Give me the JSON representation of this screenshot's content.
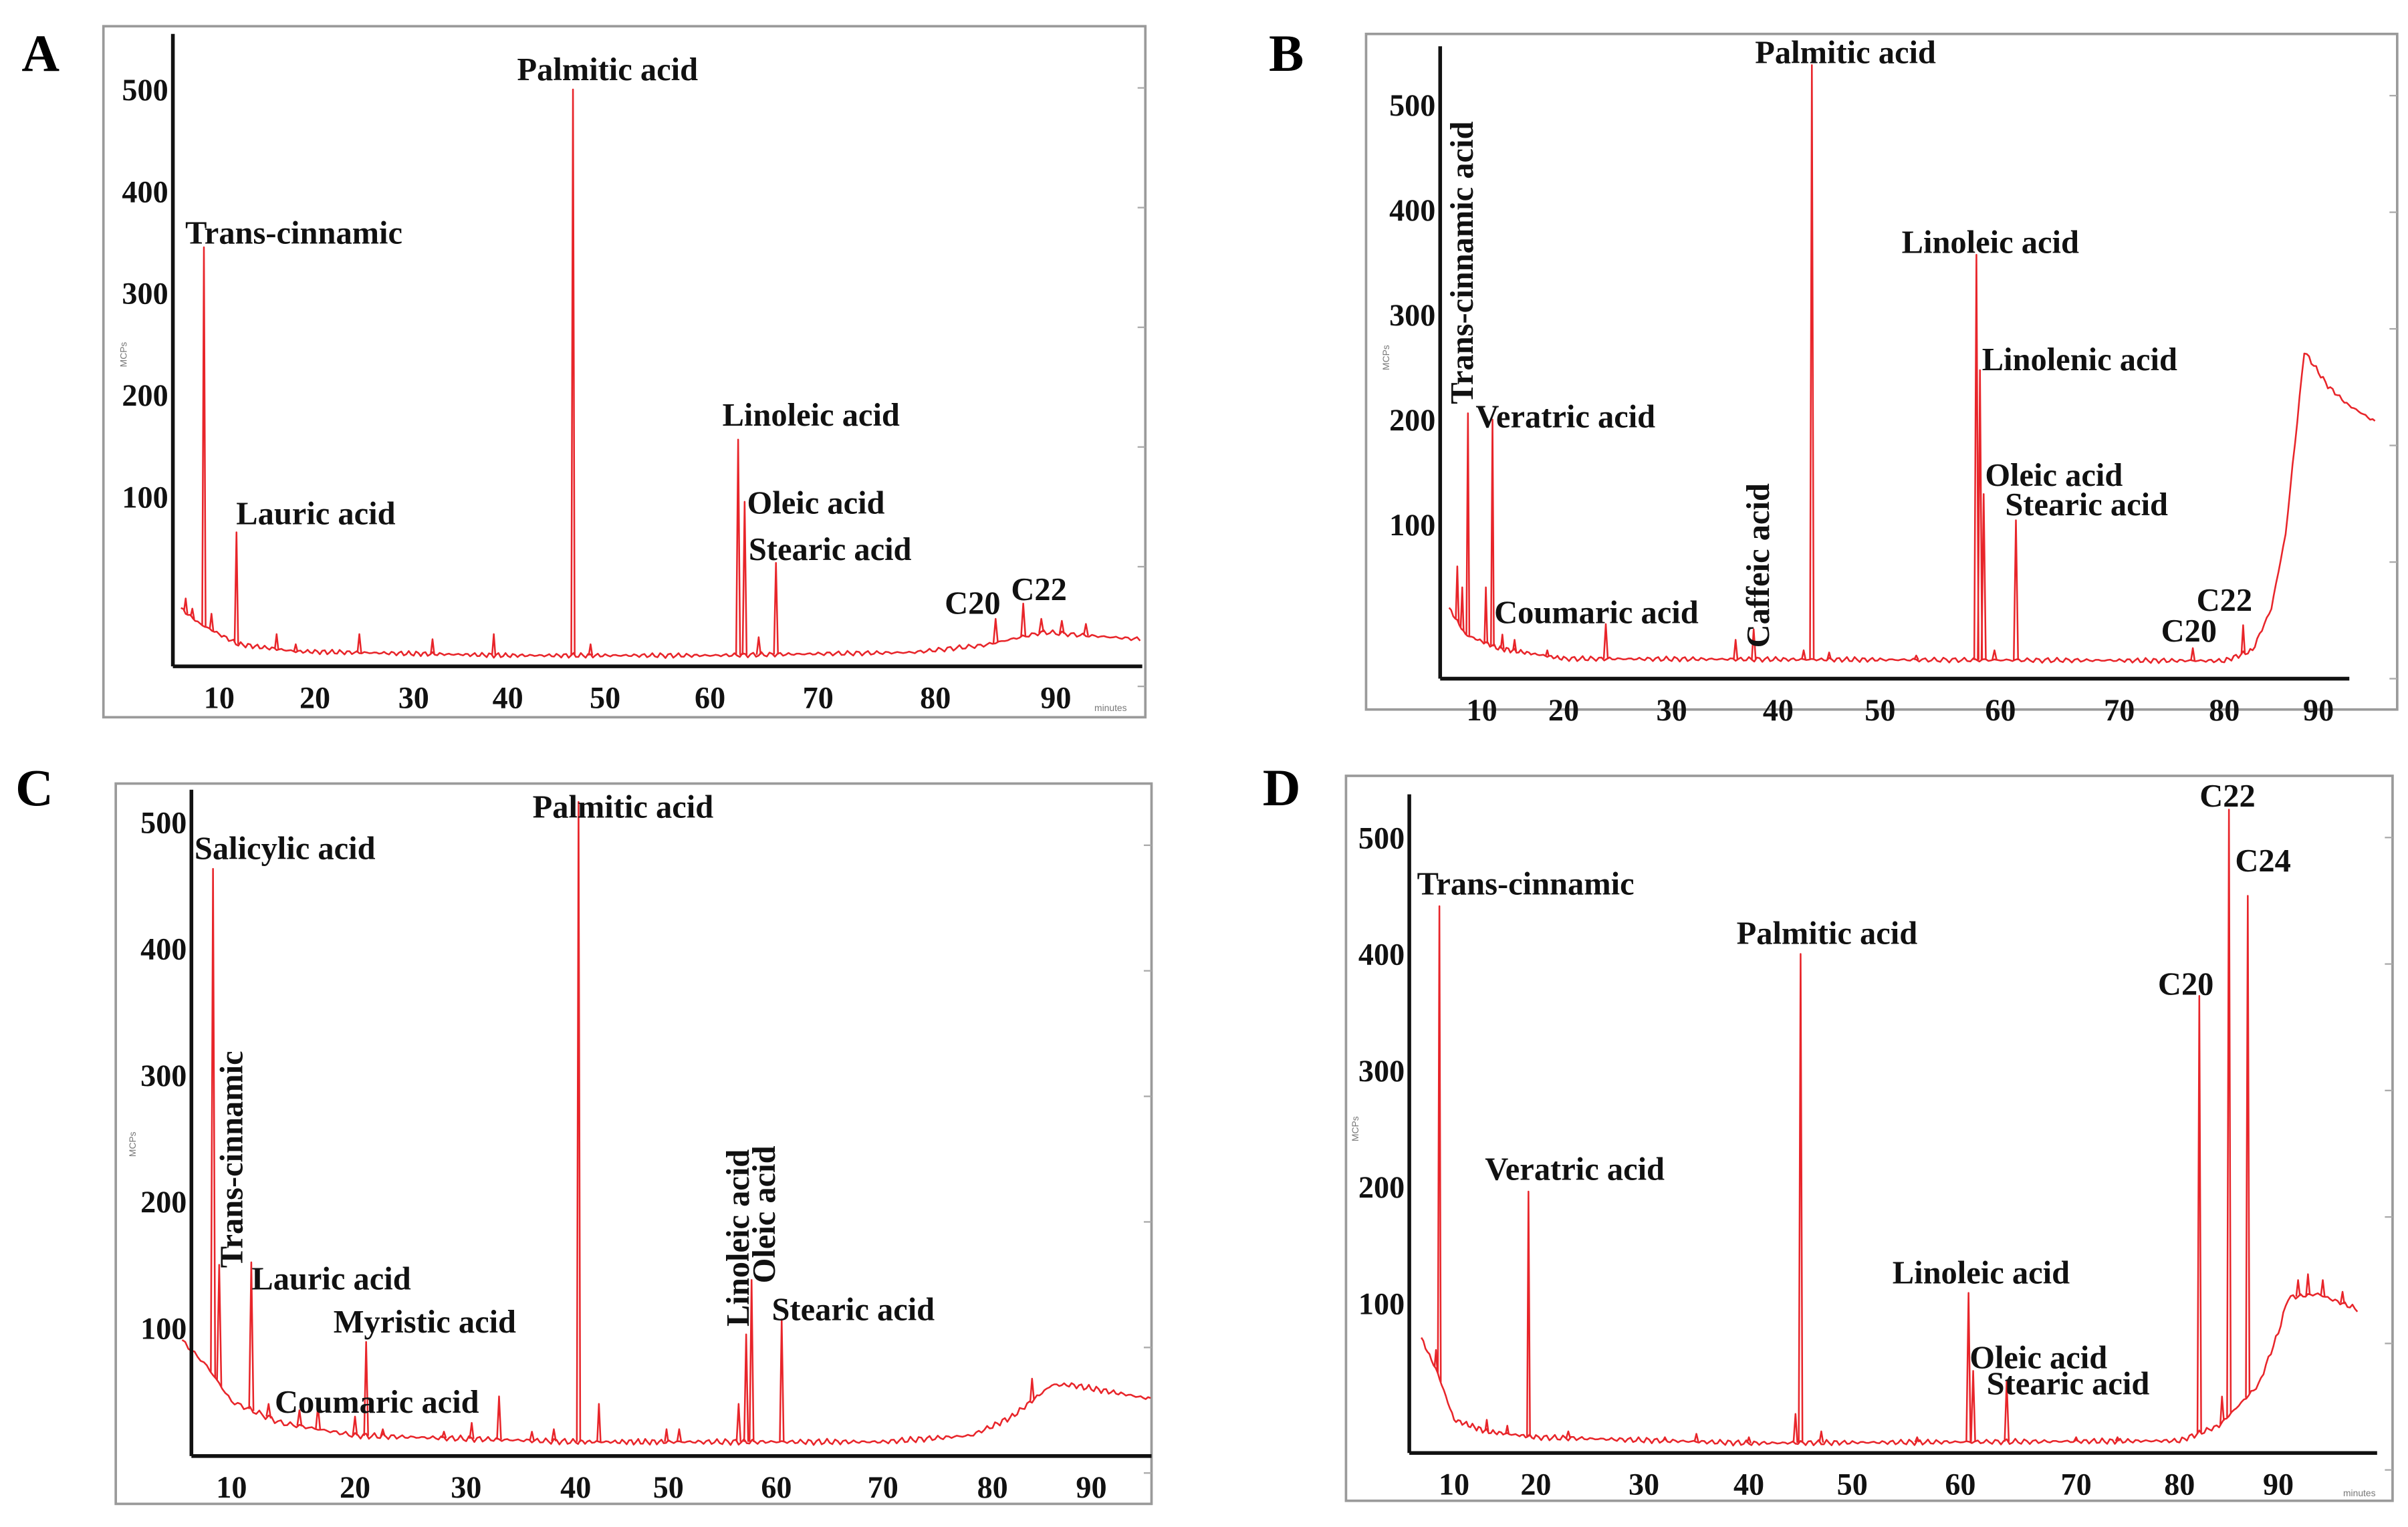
{
  "figure": {
    "colors": {
      "trace": "#e8252a",
      "axis": "#111111",
      "frame": "#9a9a9a"
    },
    "y_unit_label": "MCPs",
    "x_unit_label": "minutes"
  },
  "chart_data": [
    {
      "panel": "A",
      "type": "line",
      "x_ticks": [
        "10",
        "20",
        "30",
        "40",
        "50",
        "60",
        "70",
        "80",
        "90"
      ],
      "y_ticks": [
        "100",
        "200",
        "300",
        "400",
        "500"
      ],
      "xlim": [
        6,
        97
      ],
      "grid": false,
      "peaks": [
        {
          "label": "Trans-cinnamic",
          "rt": 8.4,
          "intensity": 345
        },
        {
          "label": "Lauric acid",
          "rt": 11.8,
          "intensity": 65
        },
        {
          "label": "Palmitic acid",
          "rt": 46.7,
          "intensity": 500
        },
        {
          "label": "Linoleic acid",
          "rt": 62.6,
          "intensity": 156
        },
        {
          "label": "Oleic acid",
          "rt": 63.2,
          "intensity": 95
        },
        {
          "label": "Stearic acid",
          "rt": 66.1,
          "intensity": 35
        },
        {
          "label": "C20",
          "rt": 85.0,
          "intensity": -20
        },
        {
          "label": "C22",
          "rt": 87.3,
          "intensity": -5
        }
      ],
      "minor_peaks": [
        [
          6.5,
          0
        ],
        [
          7.2,
          -10
        ],
        [
          9.2,
          -15
        ],
        [
          16,
          -35
        ],
        [
          18,
          -45
        ],
        [
          24.5,
          -35
        ],
        [
          32,
          -40
        ],
        [
          38.5,
          -35
        ],
        [
          48.5,
          -45
        ],
        [
          64.5,
          -38
        ],
        [
          88.8,
          -20
        ],
        [
          90.5,
          -22
        ],
        [
          92.5,
          -25
        ]
      ],
      "baseline": [
        [
          6,
          -10
        ],
        [
          8,
          -25
        ],
        [
          12,
          -45
        ],
        [
          18,
          -52
        ],
        [
          40,
          -56
        ],
        [
          60,
          -56
        ],
        [
          78,
          -53
        ],
        [
          84,
          -46
        ],
        [
          89,
          -33
        ],
        [
          92,
          -36
        ],
        [
          97,
          -40
        ]
      ]
    },
    {
      "panel": "B",
      "type": "line",
      "x_ticks": [
        "10",
        "20",
        "30",
        "40",
        "50",
        "60",
        "70",
        "80",
        "90"
      ],
      "y_ticks": [
        "100",
        "200",
        "300",
        "400",
        "500"
      ],
      "xlim": [
        6,
        96
      ],
      "grid": false,
      "peaks": [
        {
          "label": "Trans-cinnamic acid",
          "rt": 8.3,
          "intensity": 206
        },
        {
          "label": "Veratric acid",
          "rt": 11.3,
          "intensity": 200
        },
        {
          "label": "Coumaric acid",
          "rt": 23.9,
          "intensity": 5
        },
        {
          "label": "Caffeic acid",
          "rt": 37.7,
          "intensity": 0
        },
        {
          "label": "Palmitic acid",
          "rt": 43.3,
          "intensity": 538
        },
        {
          "label": "Linoleic acid",
          "rt": 58.0,
          "intensity": 357
        },
        {
          "label": "Linolenic acid",
          "rt": 58.3,
          "intensity": 247
        },
        {
          "label": "Oleic acid",
          "rt": 58.6,
          "intensity": 129
        },
        {
          "label": "Stearic acid",
          "rt": 61.3,
          "intensity": 104
        },
        {
          "label": "C20",
          "rt": 77.0,
          "intensity": -18
        },
        {
          "label": "C22",
          "rt": 82.0,
          "intensity": 4
        }
      ],
      "minor_peaks": [
        [
          7,
          60
        ],
        [
          7.6,
          40
        ],
        [
          10.5,
          40
        ],
        [
          12.5,
          -5
        ],
        [
          14,
          -10
        ],
        [
          18,
          -20
        ],
        [
          36,
          -10
        ],
        [
          42.5,
          -20
        ],
        [
          45,
          -22
        ],
        [
          53,
          -25
        ],
        [
          59.5,
          -20
        ]
      ],
      "baseline": [
        [
          6,
          20
        ],
        [
          8,
          -5
        ],
        [
          12,
          -18
        ],
        [
          20,
          -28
        ],
        [
          80,
          -30
        ],
        [
          83,
          -20
        ],
        [
          85,
          20
        ],
        [
          86.5,
          90
        ],
        [
          88.5,
          265
        ],
        [
          91,
          232
        ],
        [
          93,
          215
        ],
        [
          96,
          198
        ]
      ]
    },
    {
      "panel": "C",
      "type": "line",
      "x_ticks": [
        "10",
        "20",
        "30",
        "40",
        "50",
        "60",
        "70",
        "80",
        "90"
      ],
      "y_ticks": [
        "100",
        "200",
        "300",
        "400",
        "500"
      ],
      "xlim": [
        6,
        96
      ],
      "grid": false,
      "peaks": [
        {
          "label": "Salicylic acid",
          "rt": 8.5,
          "intensity": 463
        },
        {
          "label": "Trans-cinnamic",
          "rt": 9.0,
          "intensity": 150
        },
        {
          "label": "Lauric acid",
          "rt": 11.6,
          "intensity": 152
        },
        {
          "label": "Myristic acid",
          "rt": 21.0,
          "intensity": 89
        },
        {
          "label": "Coumaric acid",
          "rt": 33.0,
          "intensity": 46
        },
        {
          "label": "Palmitic acid",
          "rt": 40.3,
          "intensity": 516
        },
        {
          "label": "Linoleic acid",
          "rt": 57.2,
          "intensity": 95
        },
        {
          "label": "Oleic acid",
          "rt": 57.7,
          "intensity": 138
        },
        {
          "label": "Stearic acid",
          "rt": 60.5,
          "intensity": 107
        }
      ],
      "minor_peaks": [
        [
          13,
          40
        ],
        [
          15.5,
          35
        ],
        [
          17,
          38
        ],
        [
          20,
          30
        ],
        [
          22.5,
          20
        ],
        [
          28,
          18
        ],
        [
          30.5,
          25
        ],
        [
          36,
          18
        ],
        [
          38,
          20
        ],
        [
          42.5,
          40
        ],
        [
          49.8,
          20
        ],
        [
          51,
          20
        ],
        [
          56.5,
          40
        ],
        [
          84,
          60
        ]
      ],
      "baseline": [
        [
          6,
          90
        ],
        [
          8,
          70
        ],
        [
          10,
          42
        ],
        [
          14,
          25
        ],
        [
          20,
          15
        ],
        [
          40,
          10
        ],
        [
          70,
          10
        ],
        [
          78,
          15
        ],
        [
          82,
          30
        ],
        [
          86,
          55
        ],
        [
          88,
          55
        ],
        [
          96,
          44
        ]
      ]
    },
    {
      "panel": "D",
      "type": "line",
      "x_ticks": [
        "10",
        "20",
        "30",
        "40",
        "50",
        "60",
        "70",
        "80",
        "90"
      ],
      "y_ticks": [
        "100",
        "200",
        "300",
        "400",
        "500"
      ],
      "xlim": [
        6,
        98
      ],
      "grid": false,
      "peaks": [
        {
          "label": "Trans-cinnamic",
          "rt": 8.2,
          "intensity": 441
        },
        {
          "label": "Veratric acid",
          "rt": 19.1,
          "intensity": 196
        },
        {
          "label": "Palmitic acid",
          "rt": 45.0,
          "intensity": 400
        },
        {
          "label": "Linoleic acid",
          "rt": 60.7,
          "intensity": 109
        },
        {
          "label": "Oleic acid",
          "rt": 61.1,
          "intensity": 42
        },
        {
          "label": "Stearic acid",
          "rt": 64.0,
          "intensity": 33
        },
        {
          "label": "C20",
          "rt": 82.0,
          "intensity": 364
        },
        {
          "label": "C22",
          "rt": 85.0,
          "intensity": 524
        },
        {
          "label": "C24",
          "rt": 86.9,
          "intensity": 450
        }
      ],
      "minor_peaks": [
        [
          7.8,
          60
        ],
        [
          14,
          0
        ],
        [
          16.5,
          -5
        ],
        [
          23,
          -10
        ],
        [
          32,
          -15
        ],
        [
          35,
          -12
        ],
        [
          40,
          -15
        ],
        [
          44.5,
          5
        ],
        [
          47,
          -10
        ],
        [
          56,
          -15
        ],
        [
          70,
          -15
        ],
        [
          74,
          -15
        ],
        [
          84.3,
          20
        ],
        [
          92,
          120
        ],
        [
          93,
          125
        ],
        [
          94.5,
          120
        ],
        [
          96.5,
          110
        ]
      ],
      "baseline": [
        [
          6,
          70
        ],
        [
          8,
          40
        ],
        [
          10,
          0
        ],
        [
          14,
          -10
        ],
        [
          20,
          -15
        ],
        [
          40,
          -20
        ],
        [
          80,
          -18
        ],
        [
          84,
          -5
        ],
        [
          88,
          30
        ],
        [
          90,
          75
        ],
        [
          91,
          105
        ],
        [
          94,
          108
        ],
        [
          98,
          95
        ]
      ]
    }
  ]
}
